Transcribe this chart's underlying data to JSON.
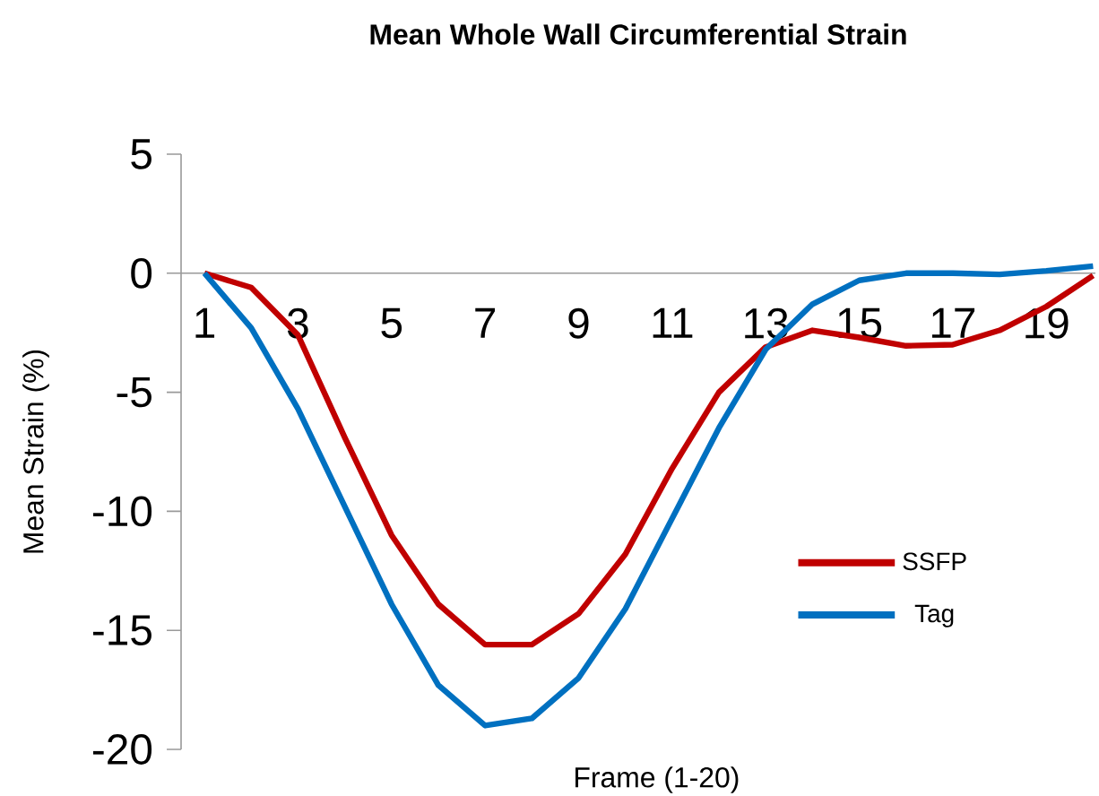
{
  "chart_data": {
    "type": "line",
    "title": "Mean Whole Wall Circumferential Strain",
    "xlabel": "Frame (1-20)",
    "ylabel": "Mean Strain (%)",
    "x": [
      1,
      2,
      3,
      4,
      5,
      6,
      7,
      8,
      9,
      10,
      11,
      12,
      13,
      14,
      15,
      16,
      17,
      18,
      19,
      20
    ],
    "series": [
      {
        "name": "SSFP",
        "color": "#c00000",
        "values": [
          0,
          -0.6,
          -2.6,
          -6.9,
          -11,
          -13.9,
          -15.6,
          -15.6,
          -14.3,
          -11.8,
          -8.2,
          -5.0,
          -3.1,
          -2.4,
          -2.7,
          -3.05,
          -3.0,
          -2.4,
          -1.4,
          -0.1
        ]
      },
      {
        "name": "Tag",
        "color": "#0070c0",
        "values": [
          0,
          -2.3,
          -5.7,
          -9.8,
          -13.9,
          -17.3,
          -19.0,
          -18.7,
          -17.0,
          -14.1,
          -10.3,
          -6.5,
          -3.2,
          -1.3,
          -0.3,
          0,
          0,
          -0.05,
          0.1,
          0.3
        ]
      }
    ],
    "xlim": [
      0.5,
      20.05
    ],
    "xticks": [
      1,
      3,
      5,
      7,
      9,
      11,
      13,
      15,
      17,
      19
    ],
    "ylim": [
      -20,
      5
    ],
    "yticks": [
      -20,
      -15,
      -10,
      -5,
      0,
      5
    ],
    "grid": false,
    "legend": "right",
    "marker": "none",
    "line_style": "solid"
  }
}
